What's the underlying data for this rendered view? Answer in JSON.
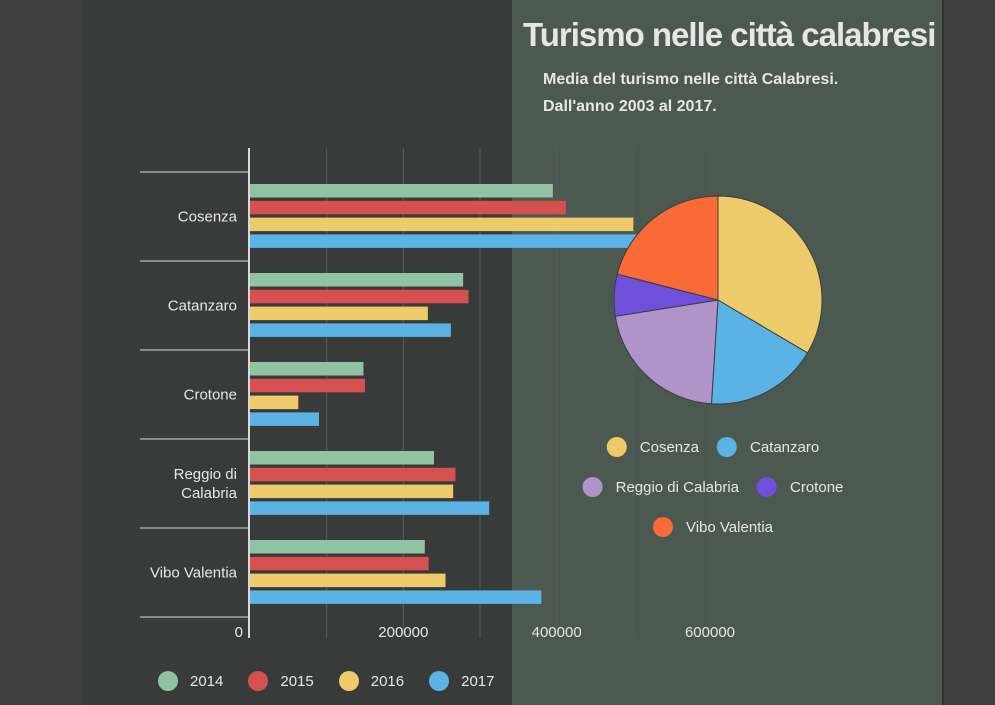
{
  "colors": {
    "page_bg": "#3f3f3f",
    "left_panel_bg": "#393b3b",
    "right_panel_bg": "#4b5951",
    "text": "#e6e6e6",
    "axis": "#d8d8d8",
    "grid": "#5a5c5c"
  },
  "header": {
    "title": "Turismo nelle città calabresi",
    "subtitle_line1": "Media del turismo nelle città Calabresi.",
    "subtitle_line2": "Dall'anno 2003 al 2017."
  },
  "chart_data": [
    {
      "type": "bar",
      "orientation": "horizontal",
      "categories": [
        "Cosenza",
        "Catanzaro",
        "Crotone",
        "Reggio di Calabria",
        "Vibo Valentia"
      ],
      "category_labels": [
        [
          "Cosenza"
        ],
        [
          "Catanzaro"
        ],
        [
          "Crotone"
        ],
        [
          "Reggio di",
          "Calabria"
        ],
        [
          "Vibo Valentia"
        ]
      ],
      "series": [
        {
          "name": "2014",
          "color": "#8fc3a3",
          "values": [
            395000,
            278000,
            148000,
            240000,
            228000
          ]
        },
        {
          "name": "2015",
          "color": "#d75050",
          "values": [
            412000,
            285000,
            150000,
            268000,
            233000
          ]
        },
        {
          "name": "2016",
          "color": "#eecb6a",
          "values": [
            500000,
            232000,
            63000,
            265000,
            255000
          ]
        },
        {
          "name": "2017",
          "color": "#5ab3e4",
          "values": [
            570000,
            262000,
            90000,
            312000,
            380000
          ]
        }
      ],
      "xlim": [
        0,
        600000
      ],
      "x_ticks": [
        0,
        200000,
        400000,
        600000
      ],
      "x_tick_labels": [
        "0",
        "200000",
        "400000",
        "600000"
      ],
      "grid": true,
      "legend_position": "bottom"
    },
    {
      "type": "pie",
      "slices": [
        {
          "name": "Cosenza",
          "value": 33.5,
          "color": "#eecb6a"
        },
        {
          "name": "Catanzaro",
          "value": 17.5,
          "color": "#5ab3e4"
        },
        {
          "name": "Reggio di Calabria",
          "value": 21.5,
          "color": "#b093c8"
        },
        {
          "name": "Crotone",
          "value": 6.5,
          "color": "#6f4fdc"
        },
        {
          "name": "Vibo Valentia",
          "value": 21.0,
          "color": "#f96a37"
        }
      ],
      "legend_rows": [
        [
          "Cosenza",
          "Catanzaro"
        ],
        [
          "Reggio di Calabria",
          "Crotone"
        ],
        [
          "Vibo Valentia"
        ]
      ],
      "legend_position": "bottom"
    }
  ]
}
